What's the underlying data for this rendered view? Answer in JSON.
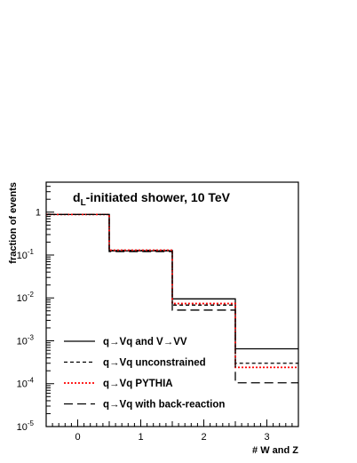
{
  "chart_data": {
    "type": "histogram-step",
    "title": {
      "main": "d",
      "subscript": "L",
      "rest": "-initiated shower, 10 TeV"
    },
    "xlabel": "# W and Z",
    "ylabel": "fraction of events",
    "xlim": [
      -0.5,
      3.5
    ],
    "ylim": [
      1e-05,
      5
    ],
    "yscale": "log",
    "grid": false,
    "legend_position": "bottom-left",
    "bin_edges": [
      -0.5,
      0.5,
      1.5,
      2.5,
      3.5
    ],
    "x_ticks": [
      {
        "value": 0,
        "label": "0"
      },
      {
        "value": 1,
        "label": "1"
      },
      {
        "value": 2,
        "label": "2"
      },
      {
        "value": 3,
        "label": "3"
      }
    ],
    "y_ticks": [
      {
        "value": 1,
        "label": "1",
        "exp": ""
      },
      {
        "value": 0.1,
        "label": "10",
        "exp": "-1"
      },
      {
        "value": 0.01,
        "label": "10",
        "exp": "-2"
      },
      {
        "value": 0.001,
        "label": "10",
        "exp": "-3"
      },
      {
        "value": 0.0001,
        "label": "10",
        "exp": "-4"
      },
      {
        "value": 1e-05,
        "label": "10",
        "exp": "-5"
      }
    ],
    "series": [
      {
        "name": "q→Vq and V→VV",
        "color": "#000000",
        "dash": "solid",
        "values": [
          0.88,
          0.125,
          0.0095,
          0.00065
        ]
      },
      {
        "name": "q→Vq unconstrained",
        "color": "#000000",
        "dash": "short-dash",
        "values": [
          0.88,
          0.128,
          0.0068,
          0.0003
        ]
      },
      {
        "name": "q→Vq PYTHIA",
        "color": "#ff0000",
        "dash": "dotted",
        "values": [
          0.88,
          0.13,
          0.0074,
          0.00024
        ]
      },
      {
        "name": "q→Vq with back-reaction",
        "color": "#000000",
        "dash": "long-dash",
        "values": [
          0.88,
          0.12,
          0.0052,
          0.000105
        ]
      }
    ]
  }
}
